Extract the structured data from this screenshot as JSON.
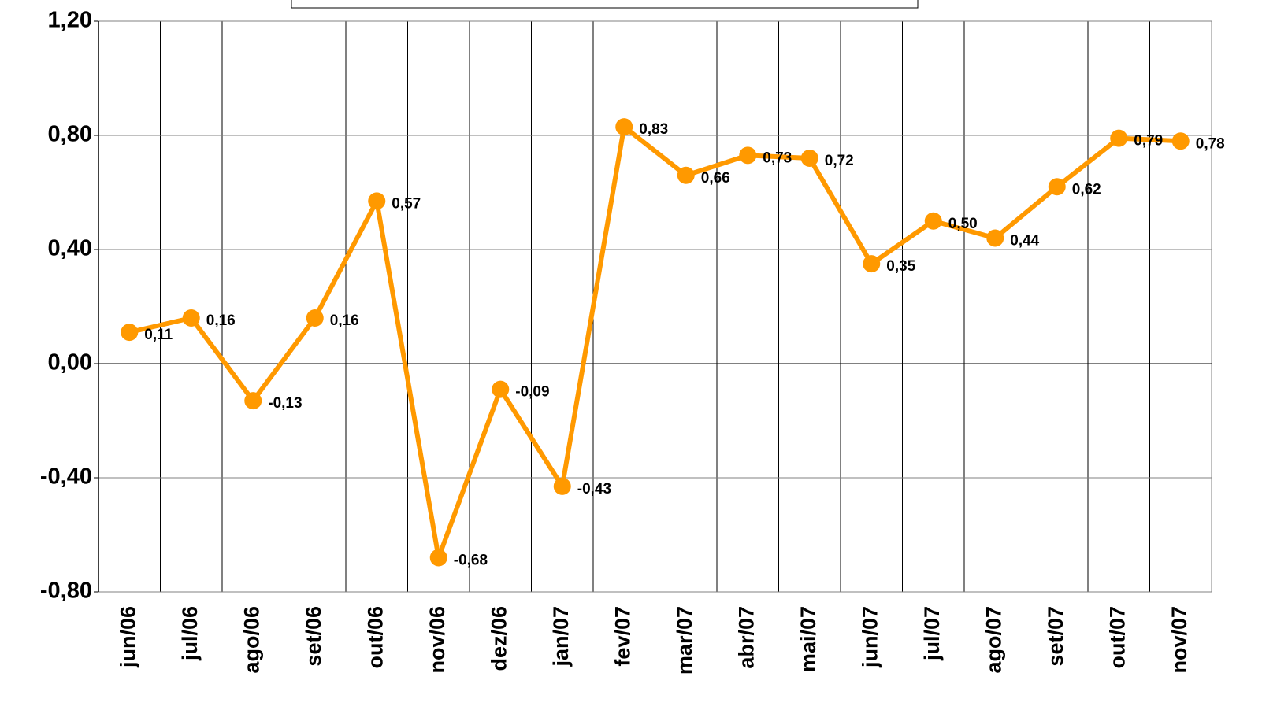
{
  "chart_data": {
    "type": "line",
    "categories": [
      "jun/06",
      "jul/06",
      "ago/06",
      "set/06",
      "out/06",
      "nov/06",
      "dez/06",
      "jan/07",
      "fev/07",
      "mar/07",
      "abr/07",
      "mai/07",
      "jun/07",
      "jul/07",
      "ago/07",
      "set/07",
      "out/07",
      "nov/07"
    ],
    "series": [
      {
        "color": "#ff9900",
        "values": [
          0.11,
          0.16,
          -0.13,
          0.16,
          0.57,
          -0.68,
          -0.09,
          -0.43,
          0.83,
          0.66,
          0.73,
          0.72,
          0.35,
          0.5,
          0.44,
          0.62,
          0.79,
          0.78
        ],
        "value_labels": [
          "0,11",
          "0,16",
          "-0,13",
          "0,16",
          "0,57",
          "-0,68",
          "-0,09",
          "-0,43",
          "0,83",
          "0,66",
          "0,73",
          "0,72",
          "0,35",
          "0,50",
          "0,44",
          "0,62",
          "0,79",
          "0,78"
        ]
      }
    ],
    "ylim": [
      -0.8,
      1.2
    ],
    "yticks": [
      {
        "value": -0.8,
        "label": "-0,80"
      },
      {
        "value": -0.4,
        "label": "-0,40"
      },
      {
        "value": 0,
        "label": "0,00"
      },
      {
        "value": 0.4,
        "label": "0,40"
      },
      {
        "value": 0.8,
        "label": "0,80"
      },
      {
        "value": 1.2,
        "label": "1,20"
      }
    ],
    "grid": true
  }
}
